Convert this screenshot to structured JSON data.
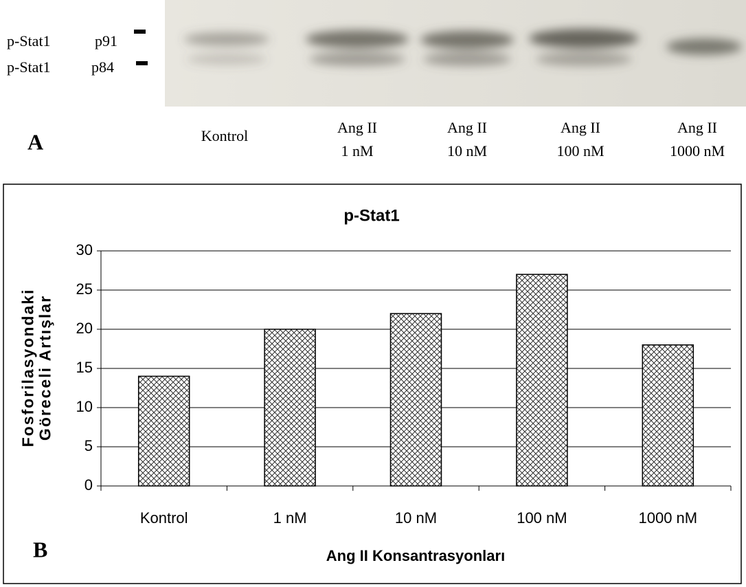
{
  "blot": {
    "band_labels": [
      [
        "p-Stat1",
        "p91"
      ],
      [
        "p-Stat1",
        "p84"
      ]
    ],
    "panel": "A",
    "lanes": [
      [
        "Kontrol"
      ],
      [
        "Ang II",
        "1 nM"
      ],
      [
        "Ang II",
        "10 nM"
      ],
      [
        "Ang II",
        "100 nM"
      ],
      [
        "Ang II",
        "1000 nM"
      ]
    ]
  },
  "chart_data": {
    "type": "bar",
    "title": "p-Stat1",
    "panel": "B",
    "y_label": [
      "Fosforilasyondaki",
      "Göreceli Artışlar"
    ],
    "x_label": "Ang II Konsantrasyonları",
    "categories": [
      "Kontrol",
      "1 nM",
      "10 nM",
      "100 nM",
      "1000 nM"
    ],
    "values": [
      14,
      20,
      22,
      27,
      18
    ],
    "color": "#333333",
    "pattern": "crosshatch",
    "ylim": [
      0,
      30
    ],
    "yticks": [
      0,
      5,
      10,
      15,
      20,
      25,
      30
    ],
    "grid": true
  }
}
